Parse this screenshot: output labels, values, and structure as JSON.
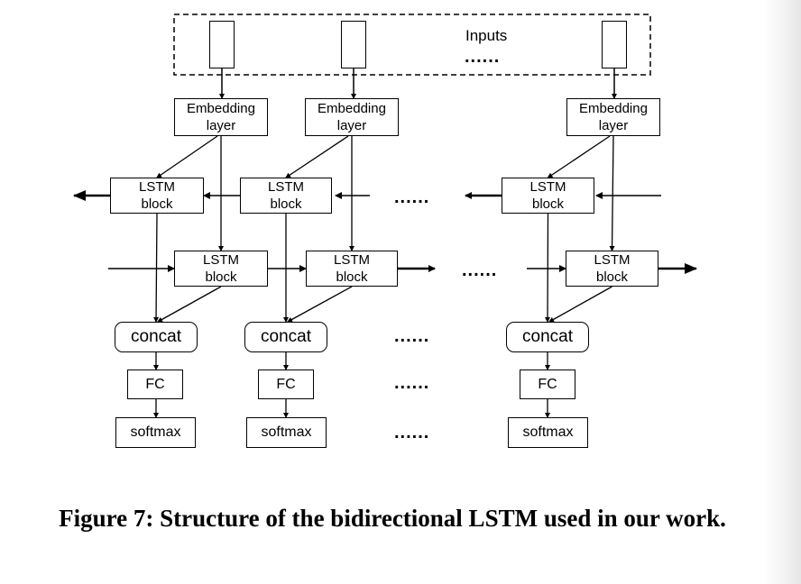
{
  "diagram": {
    "inputs_label": "Inputs",
    "ellipsis": "......",
    "columns": [
      {
        "embedding": [
          "Embedding",
          "layer"
        ],
        "lstm_backward": [
          "LSTM",
          "block"
        ],
        "lstm_forward": [
          "LSTM",
          "block"
        ],
        "concat": "concat",
        "fc": "FC",
        "softmax": "softmax"
      },
      {
        "embedding": [
          "Embedding",
          "layer"
        ],
        "lstm_backward": [
          "LSTM",
          "block"
        ],
        "lstm_forward": [
          "LSTM",
          "block"
        ],
        "concat": "concat",
        "fc": "FC",
        "softmax": "softmax"
      },
      {
        "embedding": [
          "Embedding",
          "layer"
        ],
        "lstm_backward": [
          "LSTM",
          "block"
        ],
        "lstm_forward": [
          "LSTM",
          "block"
        ],
        "concat": "concat",
        "fc": "FC",
        "softmax": "softmax"
      }
    ]
  },
  "caption": "Figure 7: Structure of the bidirectional LSTM used in our work."
}
